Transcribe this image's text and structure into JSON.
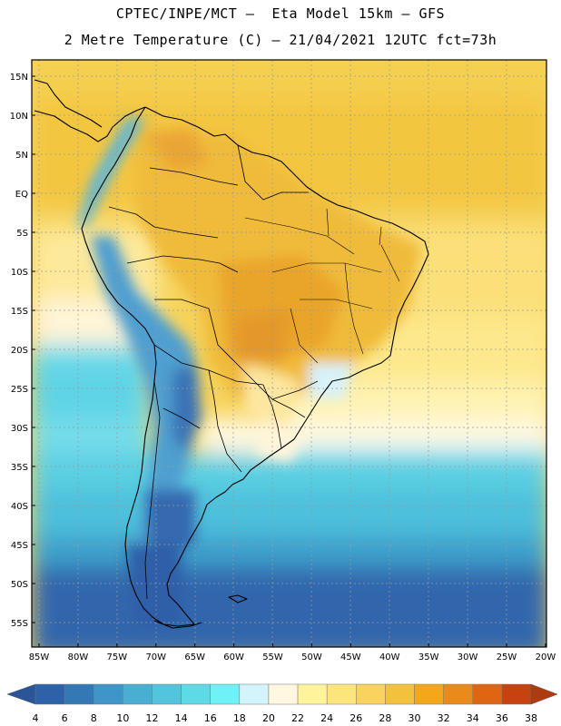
{
  "header": {
    "line1": "CPTEC/INPE/MCT –  Eta Model 15km – GFS",
    "line2": "2 Metre Temperature (C) – 21/04/2021 12UTC fct=73h"
  },
  "map": {
    "lon_range": [
      -85,
      -20
    ],
    "lat_range": [
      -58,
      17
    ],
    "lon_ticks": [
      "85W",
      "80W",
      "75W",
      "70W",
      "65W",
      "60W",
      "55W",
      "50W",
      "45W",
      "40W",
      "35W",
      "30W",
      "25W",
      "20W"
    ],
    "lat_ticks": [
      "15N",
      "10N",
      "5N",
      "EQ",
      "5S",
      "10S",
      "15S",
      "20S",
      "25S",
      "30S",
      "35S",
      "40S",
      "45S",
      "50S",
      "55S"
    ],
    "lat_tick_values": [
      15,
      10,
      5,
      0,
      -5,
      -10,
      -15,
      -20,
      -25,
      -30,
      -35,
      -40,
      -45,
      -50,
      -55
    ],
    "lon_tick_values": [
      -85,
      -80,
      -75,
      -70,
      -65,
      -60,
      -55,
      -50,
      -45,
      -40,
      -35,
      -30,
      -25,
      -20
    ]
  },
  "colorbar": {
    "labels": [
      "4",
      "6",
      "8",
      "10",
      "12",
      "14",
      "16",
      "18",
      "20",
      "22",
      "24",
      "26",
      "28",
      "30",
      "32",
      "34",
      "36",
      "38"
    ],
    "colors": [
      "#2d62a8",
      "#3478b5",
      "#3f94c8",
      "#4aaed3",
      "#54c3dc",
      "#5ed9e6",
      "#6ef2f8",
      "#d4f4fb",
      "#fff7e0",
      "#fff49c",
      "#fde57e",
      "#f9d35e",
      "#f3c13c",
      "#f2a81a",
      "#ea8a1a",
      "#de6612",
      "#c74210"
    ],
    "low_color": "#2a5598",
    "high_color": "#b03a10"
  }
}
